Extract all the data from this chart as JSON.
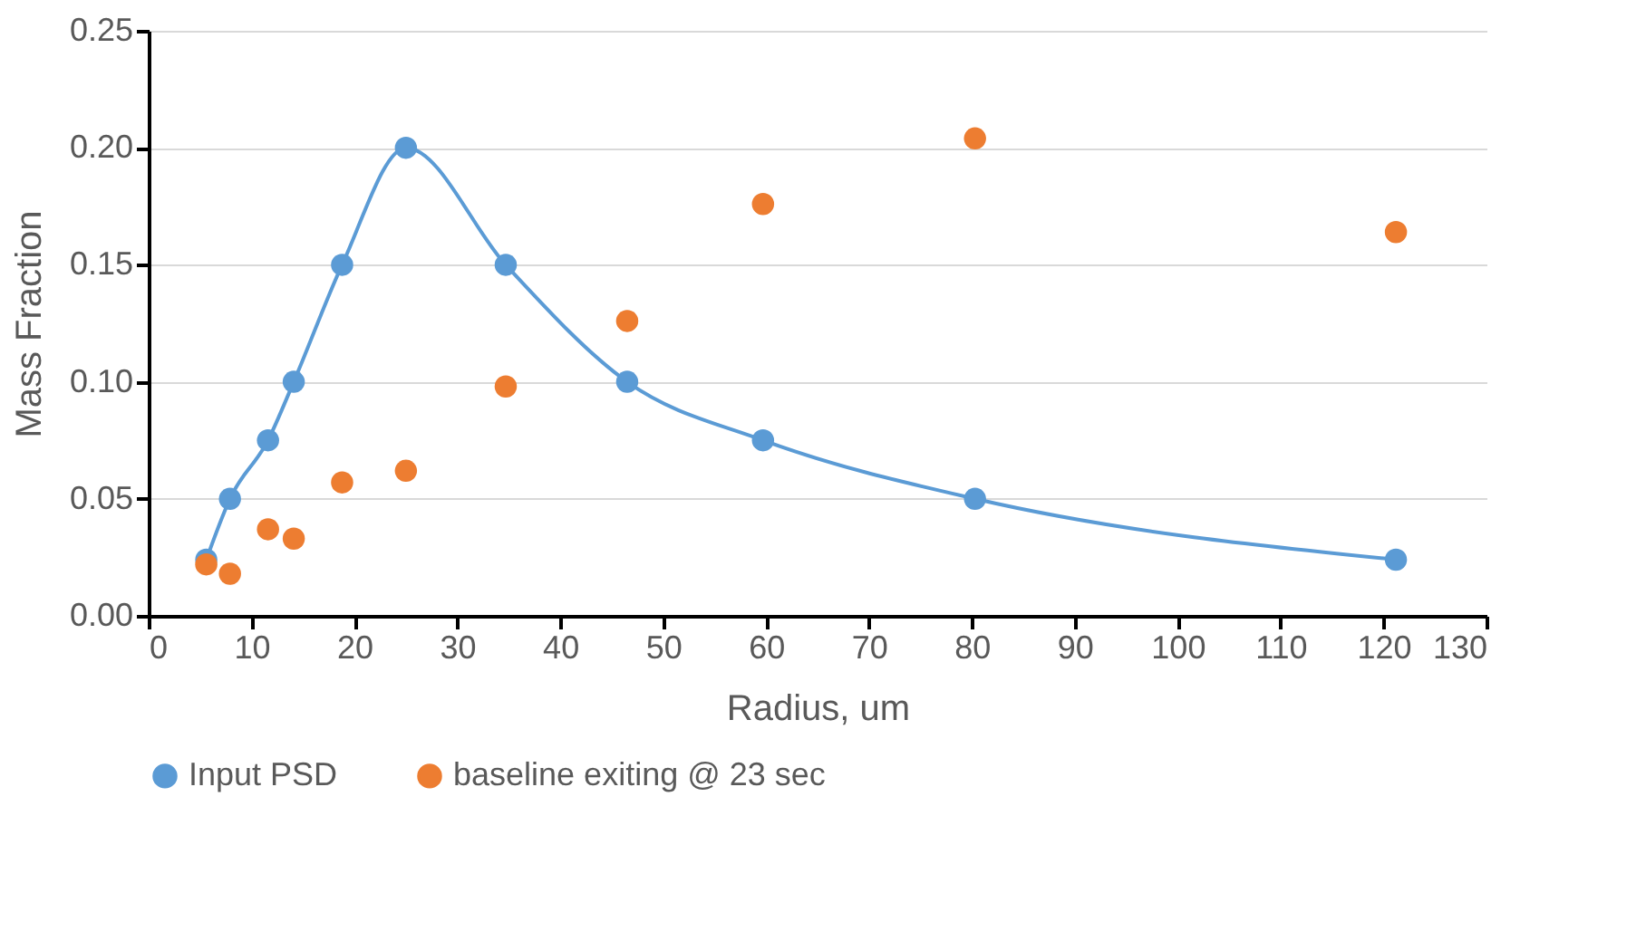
{
  "chart_data": {
    "type": "line",
    "xlabel": "Radius, um",
    "ylabel": "Mass Fraction",
    "xlim": [
      0,
      130
    ],
    "xticks": [
      0,
      10,
      20,
      30,
      40,
      50,
      60,
      70,
      80,
      90,
      100,
      110,
      120,
      130
    ],
    "ylim": [
      0,
      0.25
    ],
    "yticks": [
      {
        "value": 0,
        "label": "0.00"
      },
      {
        "value": 0.05,
        "label": "0.05"
      },
      {
        "value": 0.1,
        "label": "0.10"
      },
      {
        "value": 0.15,
        "label": "0.15"
      },
      {
        "value": 0.2,
        "label": "0.20"
      },
      {
        "value": 0.25,
        "label": "0.25"
      }
    ],
    "grid": "y",
    "legend": "bottom",
    "marker": "circle",
    "x": [
      5.6,
      7.9,
      11.6,
      14.1,
      18.8,
      25.0,
      34.7,
      46.5,
      59.7,
      80.3,
      121.2
    ],
    "series": [
      {
        "name": "Input PSD",
        "type": "line",
        "color": "#5b9bd5",
        "values": [
          0.024,
          0.05,
          0.075,
          0.1,
          0.15,
          0.2,
          0.15,
          0.1,
          0.075,
          0.05,
          0.024
        ]
      },
      {
        "name": "baseline exiting @ 23 sec",
        "type": "scatter",
        "color": "#ed7d31",
        "values": [
          0.022,
          0.018,
          0.037,
          0.033,
          0.057,
          0.062,
          0.098,
          0.126,
          0.176,
          0.204,
          0.164
        ]
      }
    ]
  }
}
